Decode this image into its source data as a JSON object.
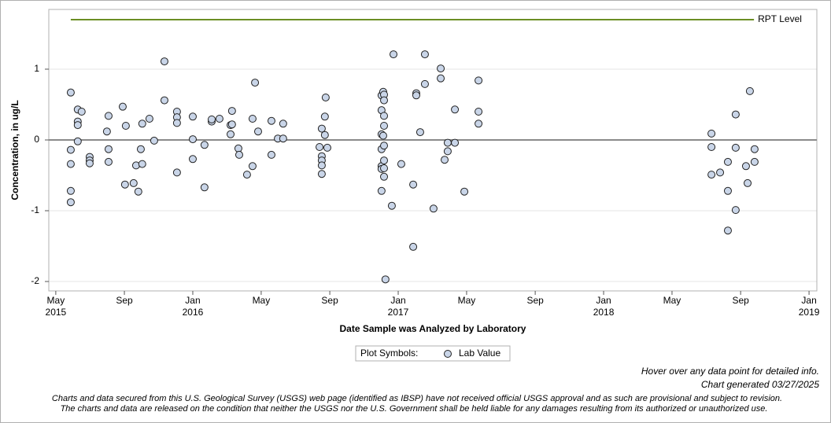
{
  "chart_data": {
    "type": "scatter",
    "y_label": "Concentration, in ug/L",
    "x_label": "Date Sample was Analyzed by Laboratory",
    "legend_title": "Plot Symbols:",
    "footer": [
      "Hover over any data point for detailed info.",
      "Chart generated 03/27/2025"
    ],
    "notes": [
      "Charts and data secured from this U.S. Geological Survey (USGS) web page (identified as IBSP) have not received official USGS approval and as such are provisional and subject to revision.",
      "The charts and data are released on the condition that neither the USGS nor the U.S. Government shall be held liable for any damages resulting from its authorized or unauthorized use."
    ],
    "xlim": [
      2015.299,
      2019.038
    ],
    "ylim": [
      -2.133,
      1.844
    ],
    "xticks": [
      {
        "value": 2015.333,
        "label": "May\n2015"
      },
      {
        "value": 2015.667,
        "label": "Sep"
      },
      {
        "value": 2016,
        "label": "Jan\n2016"
      },
      {
        "value": 2016.333,
        "label": "May"
      },
      {
        "value": 2016.667,
        "label": "Sep"
      },
      {
        "value": 2017,
        "label": "Jan\n2017"
      },
      {
        "value": 2017.333,
        "label": "May"
      },
      {
        "value": 2017.667,
        "label": "Sep"
      },
      {
        "value": 2018,
        "label": "Jan\n2018"
      },
      {
        "value": 2018.333,
        "label": "May"
      },
      {
        "value": 2018.667,
        "label": "Sep"
      },
      {
        "value": 2019,
        "label": "Jan\n2019"
      }
    ],
    "yticks": [
      -2,
      -1,
      0,
      1
    ],
    "grid": true,
    "zero_line": 0,
    "series": [
      {
        "name": "RPT Level",
        "type": "line",
        "color": "#6b8e23",
        "x": [
          2015.406,
          2018.732
        ],
        "values": [
          1.7,
          1.7
        ]
      },
      {
        "name": "Lab Value",
        "type": "scatter",
        "color": "#c9d5e8",
        "x": [
          2015.406,
          2015.406,
          2015.406,
          2015.406,
          2015.406,
          2015.44,
          2015.44,
          2015.44,
          2015.44,
          2015.459,
          2015.498,
          2015.498,
          2015.498,
          2015.582,
          2015.59,
          2015.59,
          2015.59,
          2015.659,
          2015.67,
          2015.674,
          2015.712,
          2015.724,
          2015.735,
          2015.747,
          2015.754,
          2015.754,
          2015.789,
          2015.812,
          2015.862,
          2015.862,
          2015.923,
          2015.923,
          2015.923,
          2015.923,
          2016.0,
          2016.0,
          2016.0,
          2016.057,
          2016.057,
          2016.092,
          2016.092,
          2016.13,
          2016.184,
          2016.184,
          2016.191,
          2016.191,
          2016.222,
          2016.226,
          2016.264,
          2016.291,
          2016.291,
          2016.303,
          2016.318,
          2016.383,
          2016.383,
          2016.414,
          2016.44,
          2016.44,
          2016.617,
          2016.628,
          2016.628,
          2016.628,
          2016.628,
          2016.628,
          2016.643,
          2016.643,
          2016.647,
          2016.655,
          2016.919,
          2016.919,
          2016.919,
          2016.919,
          2016.919,
          2016.919,
          2016.919,
          2016.927,
          2016.927,
          2016.931,
          2016.931,
          2016.931,
          2016.931,
          2016.931,
          2016.931,
          2016.931,
          2016.931,
          2016.938,
          2016.969,
          2016.977,
          2017.015,
          2017.073,
          2017.073,
          2017.088,
          2017.088,
          2017.107,
          2017.13,
          2017.13,
          2017.172,
          2017.207,
          2017.207,
          2017.226,
          2017.241,
          2017.241,
          2017.276,
          2017.276,
          2017.322,
          2017.391,
          2017.391,
          2017.391,
          2018.525,
          2018.525,
          2018.525,
          2018.567,
          2018.605,
          2018.605,
          2018.605,
          2018.643,
          2018.643,
          2018.643,
          2018.693,
          2018.701,
          2018.712,
          2018.735,
          2018.735
        ],
        "values": [
          0.67,
          -0.14,
          -0.34,
          -0.72,
          -0.88,
          0.43,
          0.26,
          0.21,
          -0.02,
          0.4,
          -0.24,
          -0.29,
          -0.33,
          0.12,
          0.34,
          -0.13,
          -0.31,
          0.47,
          -0.63,
          0.2,
          -0.61,
          -0.36,
          -0.73,
          -0.13,
          0.23,
          -0.34,
          0.3,
          -0.01,
          1.11,
          0.56,
          0.4,
          0.32,
          0.24,
          -0.46,
          0.33,
          0.01,
          -0.27,
          -0.07,
          -0.67,
          0.26,
          0.29,
          0.3,
          0.21,
          0.08,
          0.41,
          0.22,
          -0.12,
          -0.21,
          -0.49,
          0.3,
          -0.37,
          0.81,
          0.12,
          0.27,
          -0.21,
          0.02,
          0.23,
          0.02,
          -0.1,
          0.16,
          -0.23,
          -0.29,
          -0.36,
          -0.48,
          0.33,
          0.07,
          0.6,
          -0.11,
          0.63,
          0.42,
          0.08,
          -0.13,
          -0.37,
          -0.41,
          -0.72,
          0.68,
          0.06,
          0.64,
          0.56,
          0.34,
          0.2,
          -0.08,
          -0.29,
          -0.4,
          -0.52,
          -1.97,
          -0.93,
          1.21,
          -0.34,
          -0.63,
          -1.51,
          0.66,
          0.63,
          0.11,
          1.21,
          0.79,
          -0.97,
          1.01,
          0.87,
          -0.28,
          -0.04,
          -0.16,
          0.43,
          -0.04,
          -0.73,
          0.84,
          0.4,
          0.23,
          0.09,
          -0.1,
          -0.49,
          -0.46,
          -0.31,
          -0.72,
          -1.28,
          0.36,
          -0.11,
          -0.99,
          -0.37,
          -0.61,
          0.69,
          -0.13,
          -0.31
        ]
      }
    ]
  }
}
